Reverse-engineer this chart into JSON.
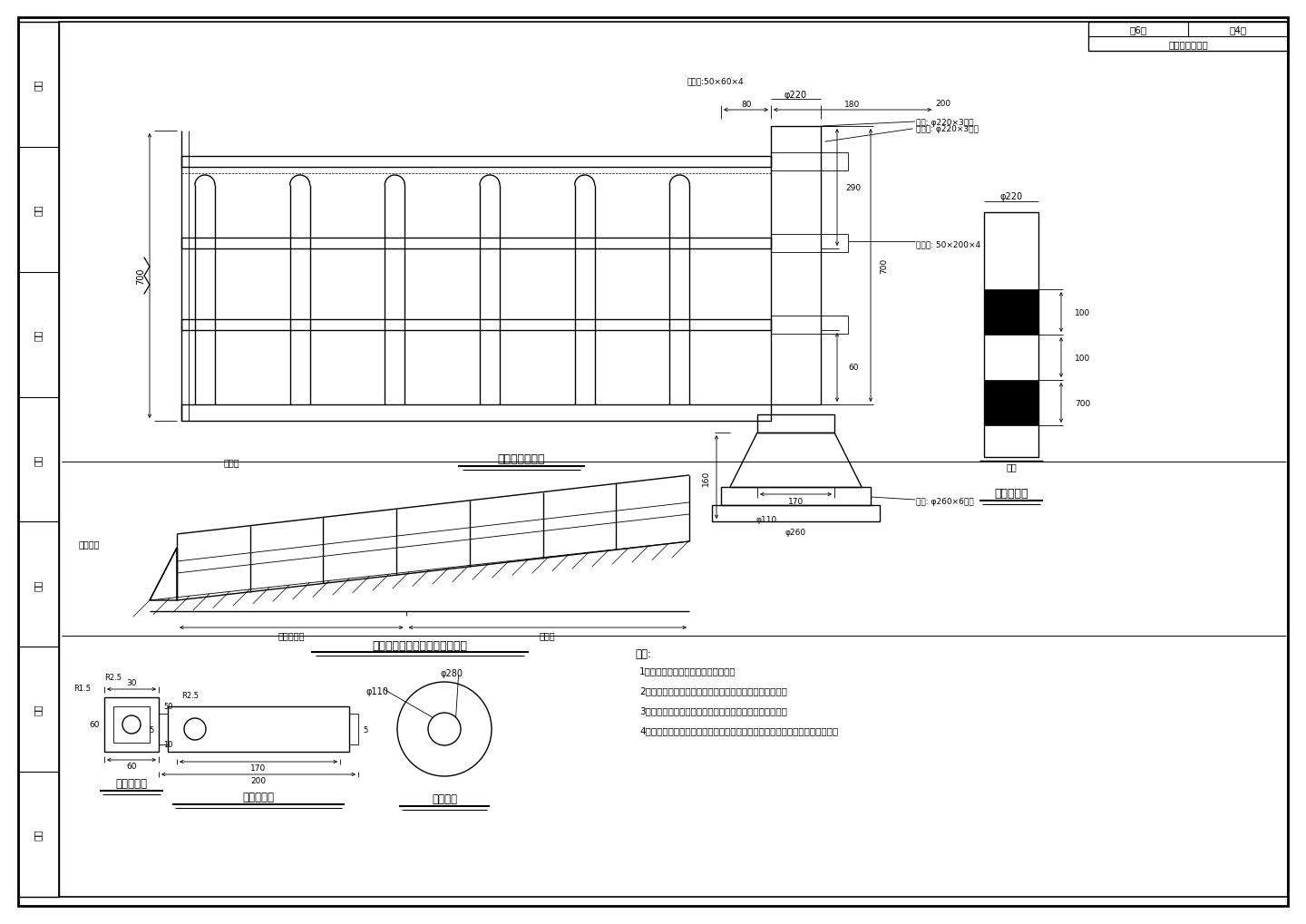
{
  "bg_color": "#ffffff",
  "annotations": {
    "top_right_title": "分隔栏杆大样图",
    "top_right_pages": "共6张",
    "top_right_page": "第4张",
    "main_drawing_label": "防撞柱连接大样",
    "middle_drawing_label": "交口处中央分隔护栏缩化示意图",
    "bottom_right_label": "防撞柱大样",
    "bottom_label1": "连接耳大样",
    "bottom_label2": "底座大样",
    "left_side_labels": [
      "日期",
      "校对",
      "专业",
      "审核",
      "日期",
      "核查",
      "制图"
    ],
    "note_title": "说明:",
    "notes": [
      "1、本图单位除特别说明外均为毫米。",
      "2、防撞柱采用刚性材料，按等间距设红、白相间反光膜。",
      "3、连接耳分别焊接于栏杆及防撞桩上，并通过螺栓连接。",
      "4、其它未尽事项参见《道路交通标志和标线》规范及交通主管部分要求执行。"
    ]
  }
}
